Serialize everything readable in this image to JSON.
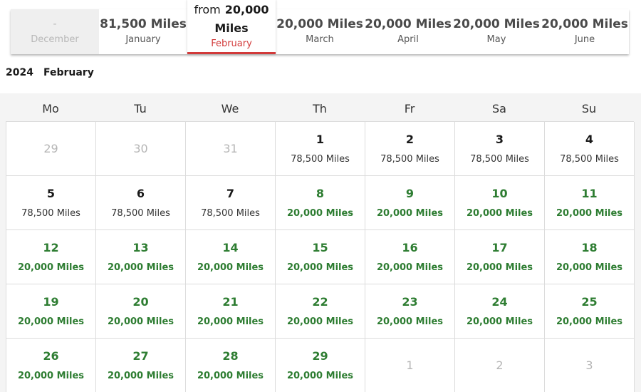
{
  "months": [
    {
      "price": "-",
      "name": "December",
      "state": "disabled"
    },
    {
      "price": "81,500 Miles",
      "name": "January",
      "state": "normal"
    },
    {
      "from_label": "from",
      "amount": "20,000",
      "unit": "Miles",
      "name": "February",
      "state": "selected"
    },
    {
      "price": "20,000 Miles",
      "name": "March",
      "state": "normal"
    },
    {
      "price": "20,000 Miles",
      "name": "April",
      "state": "normal"
    },
    {
      "price": "20,000 Miles",
      "name": "May",
      "state": "normal"
    },
    {
      "price": "20,000 Miles",
      "name": "June",
      "state": "normal"
    }
  ],
  "heading": {
    "year": "2024",
    "month": "February"
  },
  "weekdays": [
    "Mo",
    "Tu",
    "We",
    "Th",
    "Fr",
    "Sa",
    "Su"
  ],
  "colors": {
    "accent_red": "#d23a3a",
    "low_price_green": "#2e7d32"
  },
  "days": [
    {
      "day": "29",
      "miles": "",
      "kind": "out"
    },
    {
      "day": "30",
      "miles": "",
      "kind": "out"
    },
    {
      "day": "31",
      "miles": "",
      "kind": "out"
    },
    {
      "day": "1",
      "miles": "78,500 Miles",
      "kind": "normal"
    },
    {
      "day": "2",
      "miles": "78,500 Miles",
      "kind": "normal"
    },
    {
      "day": "3",
      "miles": "78,500 Miles",
      "kind": "normal"
    },
    {
      "day": "4",
      "miles": "78,500 Miles",
      "kind": "normal"
    },
    {
      "day": "5",
      "miles": "78,500 Miles",
      "kind": "normal"
    },
    {
      "day": "6",
      "miles": "78,500 Miles",
      "kind": "normal"
    },
    {
      "day": "7",
      "miles": "78,500 Miles",
      "kind": "normal"
    },
    {
      "day": "8",
      "miles": "20,000 Miles",
      "kind": "green"
    },
    {
      "day": "9",
      "miles": "20,000 Miles",
      "kind": "green"
    },
    {
      "day": "10",
      "miles": "20,000 Miles",
      "kind": "green"
    },
    {
      "day": "11",
      "miles": "20,000 Miles",
      "kind": "green"
    },
    {
      "day": "12",
      "miles": "20,000 Miles",
      "kind": "green"
    },
    {
      "day": "13",
      "miles": "20,000 Miles",
      "kind": "green"
    },
    {
      "day": "14",
      "miles": "20,000 Miles",
      "kind": "green"
    },
    {
      "day": "15",
      "miles": "20,000 Miles",
      "kind": "green"
    },
    {
      "day": "16",
      "miles": "20,000 Miles",
      "kind": "green"
    },
    {
      "day": "17",
      "miles": "20,000 Miles",
      "kind": "green"
    },
    {
      "day": "18",
      "miles": "20,000 Miles",
      "kind": "green"
    },
    {
      "day": "19",
      "miles": "20,000 Miles",
      "kind": "green"
    },
    {
      "day": "20",
      "miles": "20,000 Miles",
      "kind": "green"
    },
    {
      "day": "21",
      "miles": "20,000 Miles",
      "kind": "green"
    },
    {
      "day": "22",
      "miles": "20,000 Miles",
      "kind": "green"
    },
    {
      "day": "23",
      "miles": "20,000 Miles",
      "kind": "green"
    },
    {
      "day": "24",
      "miles": "20,000 Miles",
      "kind": "green"
    },
    {
      "day": "25",
      "miles": "20,000 Miles",
      "kind": "green"
    },
    {
      "day": "26",
      "miles": "20,000 Miles",
      "kind": "green"
    },
    {
      "day": "27",
      "miles": "20,000 Miles",
      "kind": "green"
    },
    {
      "day": "28",
      "miles": "20,000 Miles",
      "kind": "green"
    },
    {
      "day": "29",
      "miles": "20,000 Miles",
      "kind": "green"
    },
    {
      "day": "1",
      "miles": "",
      "kind": "out"
    },
    {
      "day": "2",
      "miles": "",
      "kind": "out"
    },
    {
      "day": "3",
      "miles": "",
      "kind": "out"
    }
  ]
}
